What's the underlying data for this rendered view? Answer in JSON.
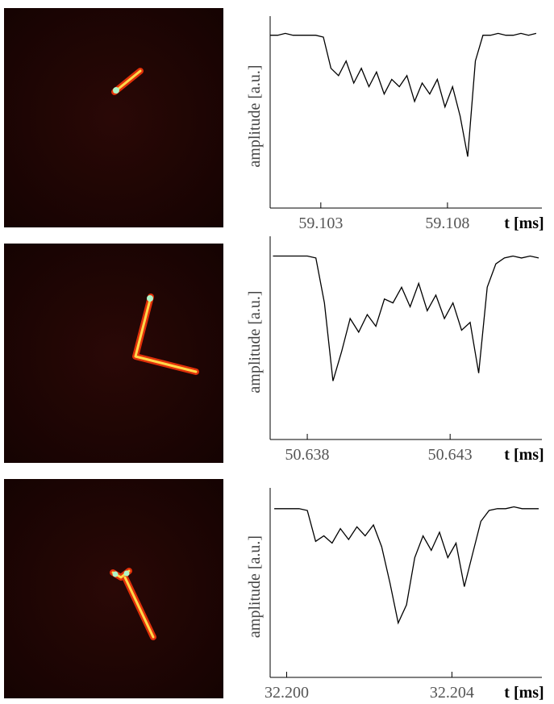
{
  "chart_data": [
    {
      "type": "line",
      "ylabel": "amplitude [a.u.]",
      "xlabel": "t [ms]",
      "color": "#000000",
      "xlim": [
        59.101,
        59.1116
      ],
      "xticks": [
        59.103,
        59.108
      ],
      "ylim": [
        0,
        1
      ],
      "x": [
        59.101,
        59.1013,
        59.1016,
        59.1019,
        59.1022,
        59.1025,
        59.1028,
        59.1031,
        59.1034,
        59.1037,
        59.104,
        59.1043,
        59.1046,
        59.1049,
        59.1052,
        59.1055,
        59.1058,
        59.1061,
        59.1064,
        59.1067,
        59.107,
        59.1073,
        59.1076,
        59.1079,
        59.1082,
        59.1085,
        59.1088,
        59.1091,
        59.1094,
        59.1097,
        59.11,
        59.1103,
        59.1106,
        59.1109,
        59.1112,
        59.1115
      ],
      "values": [
        0.94,
        0.94,
        0.95,
        0.94,
        0.94,
        0.94,
        0.94,
        0.93,
        0.76,
        0.72,
        0.8,
        0.68,
        0.76,
        0.66,
        0.74,
        0.62,
        0.7,
        0.66,
        0.72,
        0.58,
        0.68,
        0.62,
        0.7,
        0.55,
        0.66,
        0.5,
        0.28,
        0.8,
        0.94,
        0.94,
        0.95,
        0.94,
        0.94,
        0.95,
        0.94,
        0.95
      ]
    },
    {
      "type": "line",
      "ylabel": "amplitude [a.u.]",
      "xlabel": "t [ms]",
      "color": "#000000",
      "xlim": [
        50.6367,
        50.6461
      ],
      "xticks": [
        50.638,
        50.643
      ],
      "ylim": [
        0,
        1
      ],
      "x": [
        50.6368,
        50.6371,
        50.6374,
        50.6377,
        50.638,
        50.6383,
        50.6386,
        50.6389,
        50.6392,
        50.6395,
        50.6398,
        50.6401,
        50.6404,
        50.6407,
        50.641,
        50.6413,
        50.6416,
        50.6419,
        50.6422,
        50.6425,
        50.6428,
        50.6431,
        50.6434,
        50.6437,
        50.644,
        50.6443,
        50.6446,
        50.6449,
        50.6452,
        50.6455,
        50.6458,
        50.6461
      ],
      "values": [
        0.94,
        0.94,
        0.94,
        0.94,
        0.94,
        0.93,
        0.7,
        0.3,
        0.45,
        0.62,
        0.55,
        0.64,
        0.58,
        0.72,
        0.7,
        0.78,
        0.68,
        0.8,
        0.66,
        0.74,
        0.62,
        0.7,
        0.56,
        0.6,
        0.34,
        0.78,
        0.9,
        0.93,
        0.94,
        0.93,
        0.94,
        0.93
      ]
    },
    {
      "type": "line",
      "ylabel": "amplitude [a.u.]",
      "xlabel": "t [ms]",
      "color": "#000000",
      "xlim": [
        32.1996,
        32.2061
      ],
      "xticks": [
        {
          "value": 32.2,
          "label": "32.200"
        },
        32.204
      ],
      "ylim": [
        0,
        1
      ],
      "x": [
        32.1997,
        32.1999,
        32.2001,
        32.2003,
        32.2005,
        32.2007,
        32.2009,
        32.2011,
        32.2013,
        32.2015,
        32.2017,
        32.2019,
        32.2021,
        32.2023,
        32.2025,
        32.2027,
        32.2029,
        32.2031,
        32.2033,
        32.2035,
        32.2037,
        32.2039,
        32.2041,
        32.2043,
        32.2045,
        32.2047,
        32.2049,
        32.2051,
        32.2053,
        32.2055,
        32.2057,
        32.2059,
        32.2061
      ],
      "values": [
        0.93,
        0.93,
        0.93,
        0.93,
        0.92,
        0.75,
        0.78,
        0.74,
        0.82,
        0.76,
        0.83,
        0.78,
        0.84,
        0.72,
        0.52,
        0.3,
        0.4,
        0.66,
        0.78,
        0.7,
        0.8,
        0.66,
        0.74,
        0.5,
        0.68,
        0.86,
        0.92,
        0.93,
        0.93,
        0.94,
        0.93,
        0.93,
        0.93
      ]
    }
  ]
}
